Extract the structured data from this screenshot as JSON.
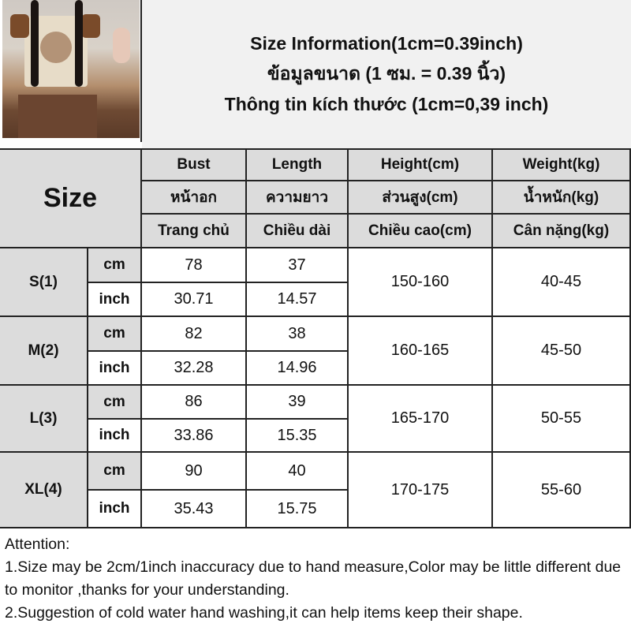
{
  "header": {
    "line1": "Size Information(1cm=0.39inch)",
    "line2": "ข้อมูลขนาด (1 ซม. = 0.39 นิ้ว)",
    "line3": "Thông tin kích thước (1cm=0,39 inch)"
  },
  "table": {
    "size_label": "Size",
    "columns": [
      {
        "en": "Bust",
        "th": "หน้าอก",
        "vi": "Trang chủ"
      },
      {
        "en": "Length",
        "th": "ความยาว",
        "vi": "Chiều dài"
      },
      {
        "en": "Height(cm)",
        "th": "ส่วนสูง(cm)",
        "vi": "Chiều cao(cm)"
      },
      {
        "en": "Weight(kg)",
        "th": "น้ำหนัก(kg)",
        "vi": "Cân nặng(kg)"
      }
    ],
    "rows": [
      {
        "size": "S(1)",
        "cm_label": "cm",
        "inch_label": "inch",
        "bust_cm": "78",
        "length_cm": "37",
        "bust_in": "30.71",
        "length_in": "14.57",
        "height": "150-160",
        "weight": "40-45"
      },
      {
        "size": "M(2)",
        "cm_label": "cm",
        "inch_label": "inch",
        "bust_cm": "82",
        "length_cm": "38",
        "bust_in": "32.28",
        "length_in": "14.96",
        "height": "160-165",
        "weight": "45-50"
      },
      {
        "size": "L(3)",
        "cm_label": "cm",
        "inch_label": "inch",
        "bust_cm": "86",
        "length_cm": "39",
        "bust_in": "33.86",
        "length_in": "15.35",
        "height": "165-170",
        "weight": "50-55"
      },
      {
        "size": "XL(4)",
        "cm_label": "cm",
        "inch_label": "inch",
        "bust_cm": "90",
        "length_cm": "40",
        "bust_in": "35.43",
        "length_in": "15.75",
        "height": "170-175",
        "weight": "55-60"
      }
    ]
  },
  "notes": {
    "title": "Attention:",
    "line1": "1.Size may be 2cm/1inch inaccuracy due to hand measure,Color may be little different due to monitor ,thanks for your understanding.",
    "line2": "2.Suggestion of cold water hand washing,it can help items keep their shape."
  }
}
